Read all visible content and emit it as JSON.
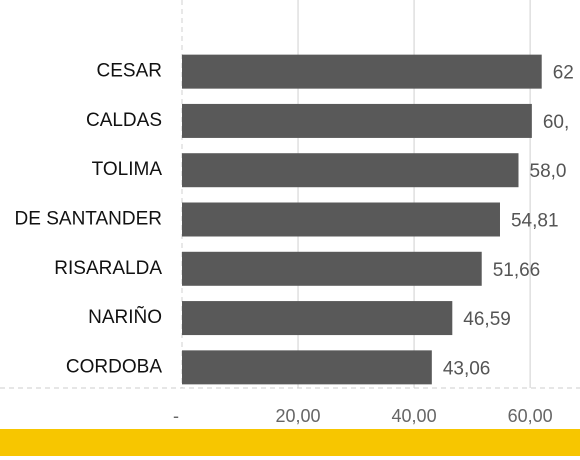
{
  "chart_data": {
    "type": "bar",
    "orientation": "horizontal",
    "categories": [
      "CESAR",
      "CALDAS",
      "TOLIMA",
      "DE SANTANDER",
      "RISARALDA",
      "NARIÑO",
      "CORDOBA"
    ],
    "values": [
      62,
      60.3,
      58.0,
      54.81,
      51.66,
      46.59,
      43.06
    ],
    "value_labels": [
      "62",
      "60,",
      "58,0",
      "54,81",
      "51,66",
      "46,59",
      "43,06"
    ],
    "color": "#595959",
    "xlim": [
      0,
      68.6
    ],
    "xticks": [
      {
        "value": 0,
        "label": "-"
      },
      {
        "value": 20,
        "label": "20,00"
      },
      {
        "value": 40,
        "label": "40,00"
      },
      {
        "value": 60,
        "label": "60,00"
      }
    ],
    "grid": true
  }
}
